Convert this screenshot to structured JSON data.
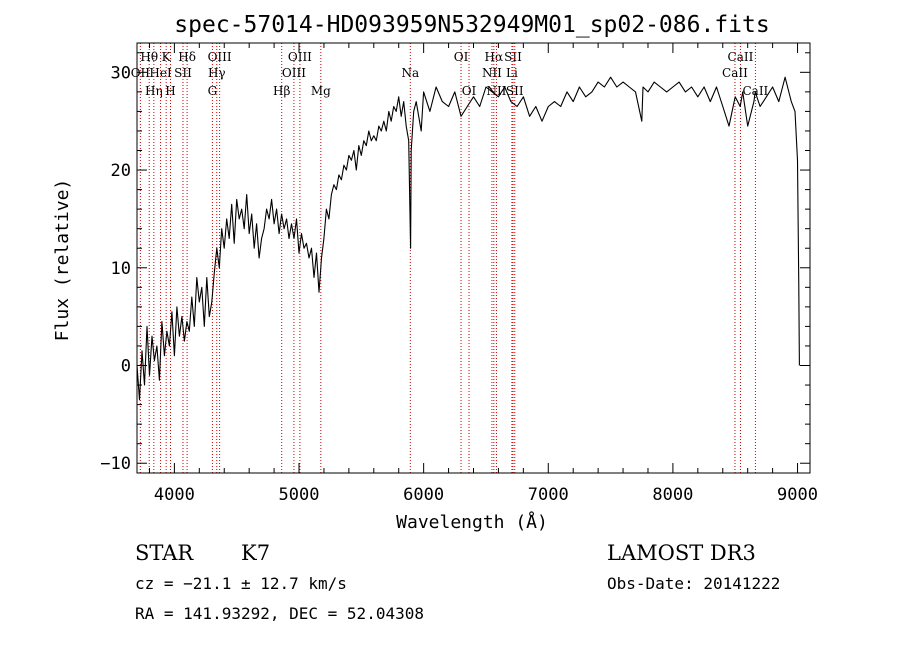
{
  "chart_data": {
    "type": "line",
    "title": "spec-57014-HD093959N532949M01_sp02-086.fits",
    "xlabel": "Wavelength (Å)",
    "ylabel": "Flux (relative)",
    "xlim": [
      3700,
      9100
    ],
    "ylim": [
      -11,
      33
    ],
    "xticks": [
      4000,
      5000,
      6000,
      7000,
      8000,
      9000
    ],
    "yticks": [
      -10,
      0,
      10,
      20,
      30
    ],
    "series": [
      {
        "name": "flux",
        "x": [
          3700,
          3720,
          3740,
          3760,
          3780,
          3800,
          3820,
          3840,
          3860,
          3880,
          3900,
          3920,
          3940,
          3960,
          3980,
          4000,
          4020,
          4040,
          4060,
          4080,
          4100,
          4120,
          4140,
          4160,
          4180,
          4200,
          4220,
          4240,
          4260,
          4280,
          4300,
          4320,
          4340,
          4360,
          4380,
          4400,
          4420,
          4440,
          4460,
          4480,
          4500,
          4520,
          4540,
          4560,
          4580,
          4600,
          4620,
          4640,
          4660,
          4680,
          4700,
          4720,
          4740,
          4760,
          4780,
          4800,
          4820,
          4840,
          4860,
          4880,
          4900,
          4920,
          4940,
          4960,
          4980,
          5000,
          5020,
          5040,
          5060,
          5080,
          5100,
          5120,
          5140,
          5160,
          5180,
          5200,
          5220,
          5240,
          5260,
          5280,
          5300,
          5320,
          5340,
          5360,
          5380,
          5400,
          5420,
          5440,
          5460,
          5480,
          5500,
          5520,
          5540,
          5560,
          5580,
          5600,
          5620,
          5640,
          5660,
          5680,
          5700,
          5720,
          5740,
          5760,
          5780,
          5800,
          5820,
          5840,
          5860,
          5880,
          5890,
          5895,
          5900,
          5920,
          5940,
          5960,
          5980,
          6000,
          6050,
          6100,
          6150,
          6200,
          6250,
          6300,
          6350,
          6400,
          6450,
          6500,
          6550,
          6600,
          6650,
          6700,
          6750,
          6800,
          6850,
          6900,
          6950,
          7000,
          7050,
          7100,
          7150,
          7200,
          7250,
          7300,
          7350,
          7400,
          7450,
          7500,
          7550,
          7600,
          7650,
          7700,
          7750,
          7760,
          7800,
          7850,
          7900,
          7950,
          8000,
          8050,
          8100,
          8150,
          8200,
          8250,
          8300,
          8350,
          8400,
          8450,
          8500,
          8540,
          8560,
          8600,
          8650,
          8660,
          8700,
          8750,
          8800,
          8850,
          8900,
          8950,
          8980,
          9000,
          9010,
          9015
        ],
        "y": [
          0.0,
          -3.5,
          1.5,
          -2.0,
          4.0,
          -1.0,
          3.0,
          0.5,
          2.0,
          -1.5,
          4.5,
          1.0,
          3.5,
          2.0,
          5.5,
          1.0,
          6.0,
          3.0,
          5.0,
          2.5,
          4.5,
          3.5,
          7.0,
          4.0,
          9.0,
          6.5,
          8.0,
          4.0,
          9.0,
          5.0,
          6.5,
          9.5,
          12.0,
          10.0,
          14.0,
          12.0,
          15.0,
          13.0,
          16.5,
          12.5,
          17.0,
          15.0,
          16.0,
          14.0,
          17.5,
          13.5,
          15.5,
          12.0,
          14.5,
          11.0,
          13.0,
          14.0,
          16.0,
          15.0,
          17.0,
          14.5,
          16.0,
          13.5,
          15.5,
          14.0,
          15.0,
          13.0,
          14.5,
          13.0,
          15.0,
          11.5,
          13.5,
          12.0,
          12.5,
          11.0,
          12.0,
          9.0,
          11.5,
          7.5,
          11.0,
          13.0,
          16.0,
          15.0,
          17.5,
          18.5,
          18.0,
          19.5,
          19.0,
          20.5,
          20.0,
          21.5,
          21.0,
          22.0,
          20.0,
          22.5,
          21.5,
          23.0,
          22.5,
          24.0,
          23.0,
          23.5,
          23.0,
          24.5,
          24.0,
          25.0,
          24.0,
          26.0,
          25.0,
          26.5,
          26.0,
          27.5,
          25.5,
          27.0,
          24.5,
          23.0,
          16.0,
          12.0,
          22.0,
          26.0,
          27.0,
          25.5,
          24.0,
          28.0,
          26.0,
          28.5,
          27.0,
          26.5,
          28.0,
          25.5,
          26.5,
          27.5,
          26.5,
          28.5,
          28.0,
          27.5,
          28.5,
          27.0,
          26.5,
          27.5,
          25.5,
          26.5,
          25.0,
          26.5,
          27.0,
          26.5,
          28.0,
          27.0,
          28.5,
          27.5,
          28.0,
          29.0,
          28.5,
          29.5,
          28.5,
          29.0,
          28.5,
          28.0,
          25.0,
          28.5,
          28.0,
          29.0,
          28.5,
          28.0,
          28.5,
          29.0,
          28.0,
          28.5,
          27.5,
          28.5,
          27.0,
          28.5,
          26.5,
          24.5,
          27.5,
          26.5,
          28.0,
          24.5,
          27.0,
          28.0,
          26.5,
          27.5,
          28.5,
          27.0,
          29.5,
          27.0,
          26.0,
          21.0,
          8.0,
          0.0
        ]
      }
    ],
    "line_markers": [
      {
        "label": "Hθ",
        "x": 3798,
        "row": 1
      },
      {
        "label": "OII",
        "x": 3727,
        "row": 2
      },
      {
        "label": "Hη",
        "x": 3835,
        "row": 3
      },
      {
        "label": "HeI",
        "x": 3889,
        "row": 2
      },
      {
        "label": "K",
        "x": 3934,
        "row": 1
      },
      {
        "label": "H",
        "x": 3969,
        "row": 3
      },
      {
        "label": "SII",
        "x": 4069,
        "row": 2
      },
      {
        "label": "Hδ",
        "x": 4102,
        "row": 1
      },
      {
        "label": "OIII",
        "x": 4363,
        "row": 1
      },
      {
        "label": "Hγ",
        "x": 4340,
        "row": 2
      },
      {
        "label": "G",
        "x": 4305,
        "row": 3
      },
      {
        "label": "OIII",
        "x": 5007,
        "row": 1
      },
      {
        "label": "OIII",
        "x": 4959,
        "row": 2
      },
      {
        "label": "Hβ",
        "x": 4861,
        "row": 3
      },
      {
        "label": "Mg",
        "x": 5175,
        "row": 3
      },
      {
        "label": "Na",
        "x": 5893,
        "row": 2
      },
      {
        "label": "OI",
        "x": 6300,
        "row": 1
      },
      {
        "label": "OI",
        "x": 6364,
        "row": 3
      },
      {
        "label": "Hα",
        "x": 6563,
        "row": 1
      },
      {
        "label": "SII",
        "x": 6717,
        "row": 1
      },
      {
        "label": "NII",
        "x": 6548,
        "row": 2
      },
      {
        "label": "Li",
        "x": 6708,
        "row": 2
      },
      {
        "label": "NII",
        "x": 6584,
        "row": 3
      },
      {
        "label": "SII",
        "x": 6731,
        "row": 3
      },
      {
        "label": "CaII",
        "x": 8542,
        "row": 1
      },
      {
        "label": "CaII",
        "x": 8498,
        "row": 2
      },
      {
        "label": "CaII",
        "x": 8662,
        "row": 3
      }
    ]
  },
  "info": {
    "class_label": "STAR",
    "subclass": "K7",
    "survey": "LAMOST DR3",
    "cz": "cz = −21.1 ± 12.7 km/s",
    "obs_date": "Obs-Date: 20141222",
    "radec": "RA = 141.93292, DEC =  52.04308"
  },
  "colors": {
    "line_marker": "#cc0000",
    "flux": "#000000",
    "axes": "#000000"
  }
}
